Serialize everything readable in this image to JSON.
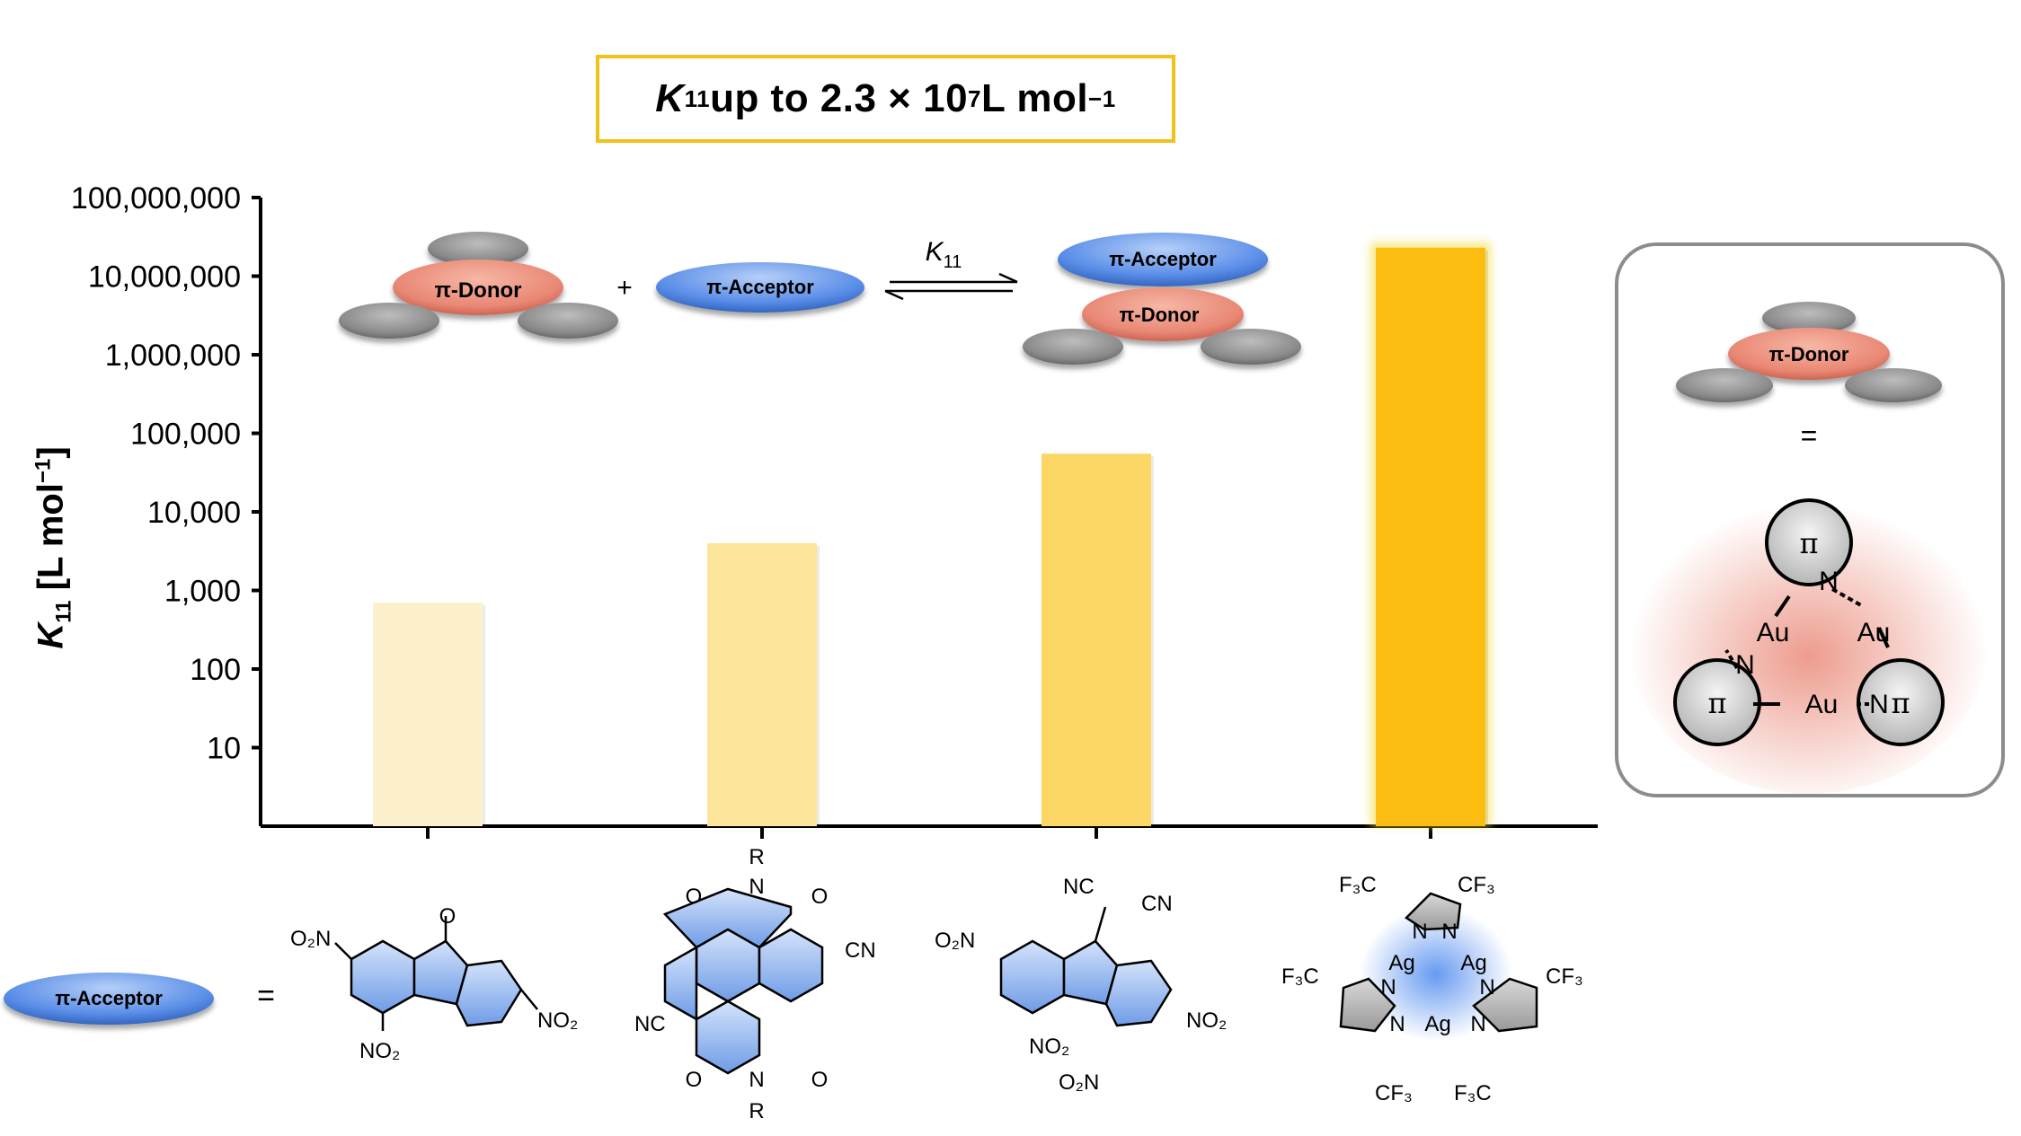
{
  "title": {
    "symbol": "K",
    "subscript": "11",
    "text": " up to 2.3 × 10",
    "exponent": "7",
    "unit": " L mol",
    "unit_exponent": "−1"
  },
  "y_axis": {
    "label_symbol": "K",
    "label_subscript": "11",
    "label_unit": " [L mol",
    "label_exponent": "−1",
    "label_close": "]"
  },
  "scheme": {
    "donor_label": "π-Donor",
    "acceptor_label": "π-Acceptor",
    "plus": "+",
    "eq_symbol": "K",
    "eq_subscript": "11",
    "equals": "="
  },
  "inset": {
    "donor_label": "π-Donor",
    "equals": "=",
    "pi": "π",
    "au": "Au",
    "n": "N"
  },
  "acceptor_row": {
    "acceptor_label": "π-Acceptor",
    "equals": "="
  },
  "colors": {
    "bar_1": "#fdf0cc",
    "bar_2": "#fde69b",
    "bar_3": "#fcd766",
    "bar_4": "#fdbd10",
    "title_border": "#f2c11b",
    "donor": "#e98774",
    "acceptor": "#5a8ee8",
    "disc_gray": "#8a8a8a"
  },
  "chart_data": {
    "type": "bar",
    "y_scale": "log",
    "ylim": [
      1,
      100000000
    ],
    "ytick_labels": [
      "10",
      "100",
      "1,000",
      "10,000",
      "100,000",
      "1,000,000",
      "10,000,000",
      "100,000,000"
    ],
    "ytick_values": [
      10,
      100,
      1000,
      10000,
      100000,
      1000000,
      10000000,
      100000000
    ],
    "categories": [
      "2,4,7-trinitrofluorenone-type acceptor",
      "naphthalene diimide acceptor",
      "dicyanomethylene-trinitrofluorene acceptor",
      "silver pyrazolate trimer acceptor"
    ],
    "values": [
      700,
      4000,
      55000,
      23000000
    ],
    "xlabel": "",
    "ylabel": "K11 [L mol−1]",
    "grid": false,
    "legend": "none"
  },
  "molecules": {
    "m1": {
      "o": "O",
      "no2_a": "O₂N",
      "no2_b": "NO₂",
      "no2_c": "NO₂"
    },
    "m2": {
      "r": "R",
      "o": "O",
      "n": "N",
      "cn": "CN",
      "nc": "NC"
    },
    "m3": {
      "nc": "NC",
      "cn": "CN",
      "o2n": "O₂N",
      "no2": "NO₂",
      "no2_b": "NO₂",
      "o2n_b": "O₂N"
    },
    "m4": {
      "cf3": "CF₃",
      "f3c": "F₃C",
      "n": "N",
      "ag": "Ag"
    }
  }
}
